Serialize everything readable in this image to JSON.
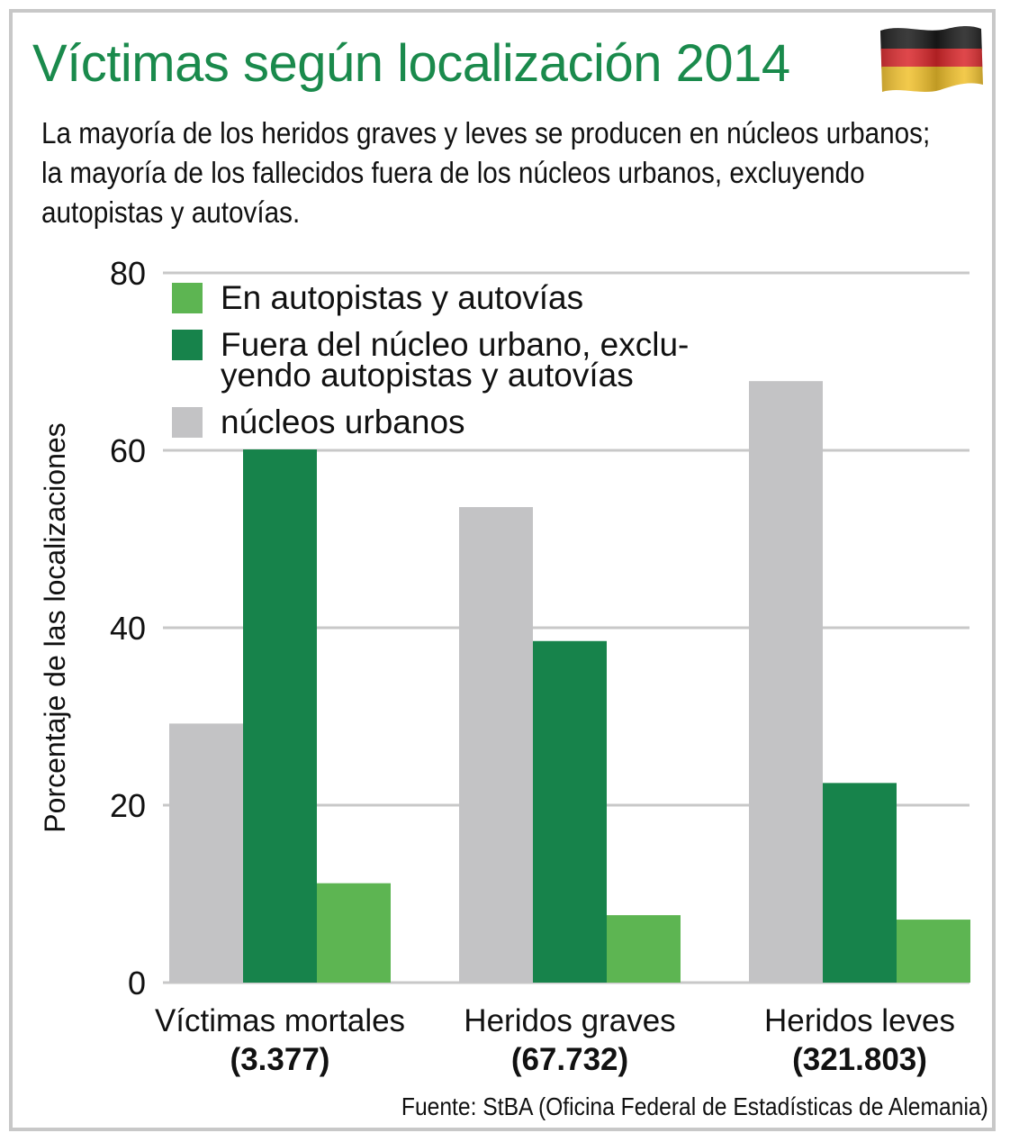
{
  "header": {
    "title": "Víctimas según localización 2014",
    "subtitle_lines": [
      "La mayoría de los heridos graves y leves se producen en núcleos urbanos;",
      "la mayoría de los fallecidos fuera de los núcleos urbanos, excluyendo",
      "autopistas y autovías."
    ],
    "flag_icon": "germany-flag-icon"
  },
  "footer": {
    "source": "Fuente: StBA (Oficina Federal de Estadísticas de Alemania)"
  },
  "colors": {
    "title": "#1a8a4c",
    "urban": "#c3c3c5",
    "outside": "#17834b",
    "motorway": "#5db552",
    "grid": "#c8c8c8"
  },
  "chart_data": {
    "type": "bar",
    "title": "Víctimas según localización 2014",
    "ylabel": "Porcentaje de las localizaciones",
    "xlabel": "",
    "ylim": [
      0,
      80
    ],
    "yticks": [
      0,
      20,
      40,
      60,
      80
    ],
    "grid": true,
    "categories": [
      {
        "name": "Víctimas mortales",
        "count": "(3.377)"
      },
      {
        "name": "Heridos graves",
        "count": "(67.732)"
      },
      {
        "name": "Heridos leves",
        "count": "(321.803)"
      }
    ],
    "series": [
      {
        "name": "núcleos urbanos",
        "legend_lines": [
          "núcleos urbanos"
        ],
        "color_key": "urban",
        "values": [
          29.2,
          53.6,
          67.8
        ]
      },
      {
        "name": "Fuera del núcleo urbano, excluyendo autopistas y autovías",
        "legend_lines": [
          "Fuera del núcleo urbano, exclu-",
          "yendo autopistas y autovías"
        ],
        "color_key": "outside",
        "values": [
          60.1,
          38.5,
          22.5
        ]
      },
      {
        "name": "En autopistas y autovías",
        "legend_lines": [
          "En autopistas y autovías"
        ],
        "color_key": "motorway",
        "values": [
          11.2,
          7.6,
          7.1
        ]
      }
    ],
    "legend_order": [
      2,
      1,
      0
    ],
    "legend_position": "top-left"
  }
}
